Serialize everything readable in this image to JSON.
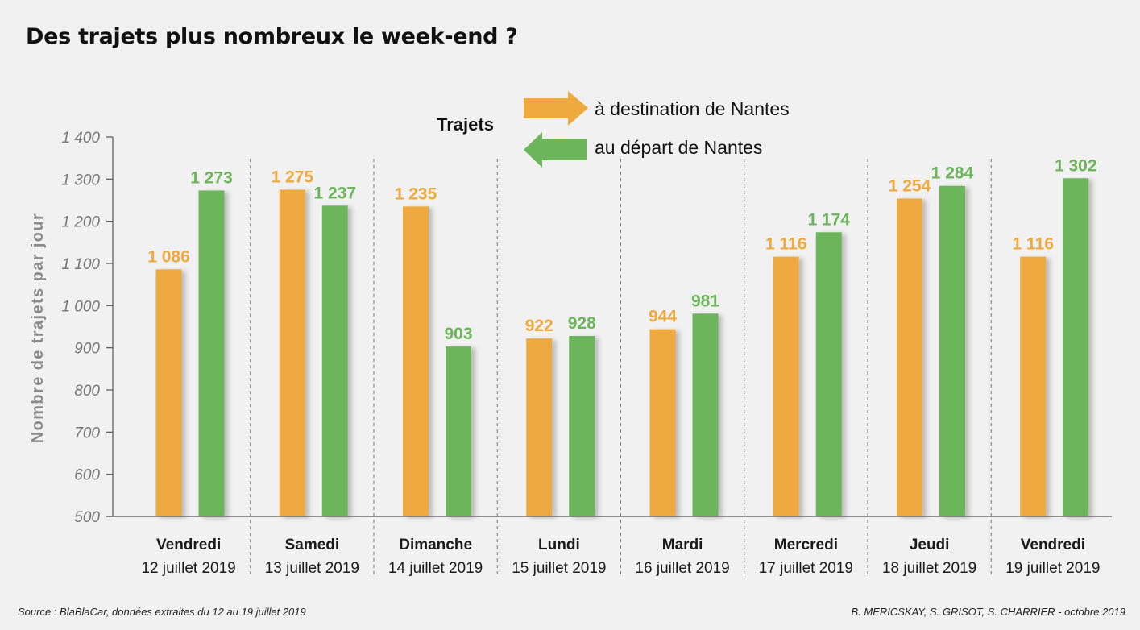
{
  "title": "Des trajets plus nombreux le week-end ?",
  "source": "Source : BlaBlaCar, données extraites du 12 au 19 juillet 2019",
  "credits": "B. MERICSKAY, S. GRISOT, S. CHARRIER - octobre 2019",
  "colors": {
    "orange": "#eea93f",
    "green": "#6cb55a",
    "axis": "#555555",
    "tick_label": "#777777",
    "ylabel": "#8a8a8a",
    "divider": "#777777",
    "background": "#f1f1f1"
  },
  "legend": {
    "heading": "Trajets",
    "items": [
      {
        "label": "à destination de Nantes",
        "color": "#eea93f",
        "icon": "arrow-right-icon"
      },
      {
        "label": "au départ de Nantes",
        "color": "#6cb55a",
        "icon": "arrow-left-icon"
      }
    ]
  },
  "chart_data": {
    "type": "bar",
    "ylabel": "Nombre de trajets par jour",
    "ylim": [
      500,
      1400
    ],
    "yticks": [
      500,
      600,
      700,
      800,
      900,
      1000,
      1100,
      1200,
      1300,
      1400
    ],
    "ytick_labels": [
      "500",
      "600",
      "700",
      "800",
      "900",
      "1 000",
      "1 100",
      "1 200",
      "1 300",
      "1 400"
    ],
    "grid": false,
    "legend_position": "top-center",
    "categories": [
      {
        "day": "Vendredi",
        "date": "12 juillet 2019"
      },
      {
        "day": "Samedi",
        "date": "13 juillet 2019"
      },
      {
        "day": "Dimanche",
        "date": "14 juillet 2019"
      },
      {
        "day": "Lundi",
        "date": "15 juillet 2019"
      },
      {
        "day": "Mardi",
        "date": "16 juillet 2019"
      },
      {
        "day": "Mercredi",
        "date": "17 juillet 2019"
      },
      {
        "day": "Jeudi",
        "date": "18 juillet 2019"
      },
      {
        "day": "Vendredi",
        "date": "19 juillet 2019"
      }
    ],
    "series": [
      {
        "name": "à destination de Nantes",
        "color": "#eea93f",
        "values": [
          1086,
          1275,
          1235,
          922,
          944,
          1116,
          1254,
          1116
        ],
        "labels": [
          "1 086",
          "1 275",
          "1 235",
          "922",
          "944",
          "1 116",
          "1 254",
          "1 116"
        ]
      },
      {
        "name": "au départ de Nantes",
        "color": "#6cb55a",
        "values": [
          1273,
          1237,
          903,
          928,
          981,
          1174,
          1284,
          1302
        ],
        "labels": [
          "1 273",
          "1 237",
          "903",
          "928",
          "981",
          "1 174",
          "1 284",
          "1 302"
        ]
      }
    ]
  }
}
